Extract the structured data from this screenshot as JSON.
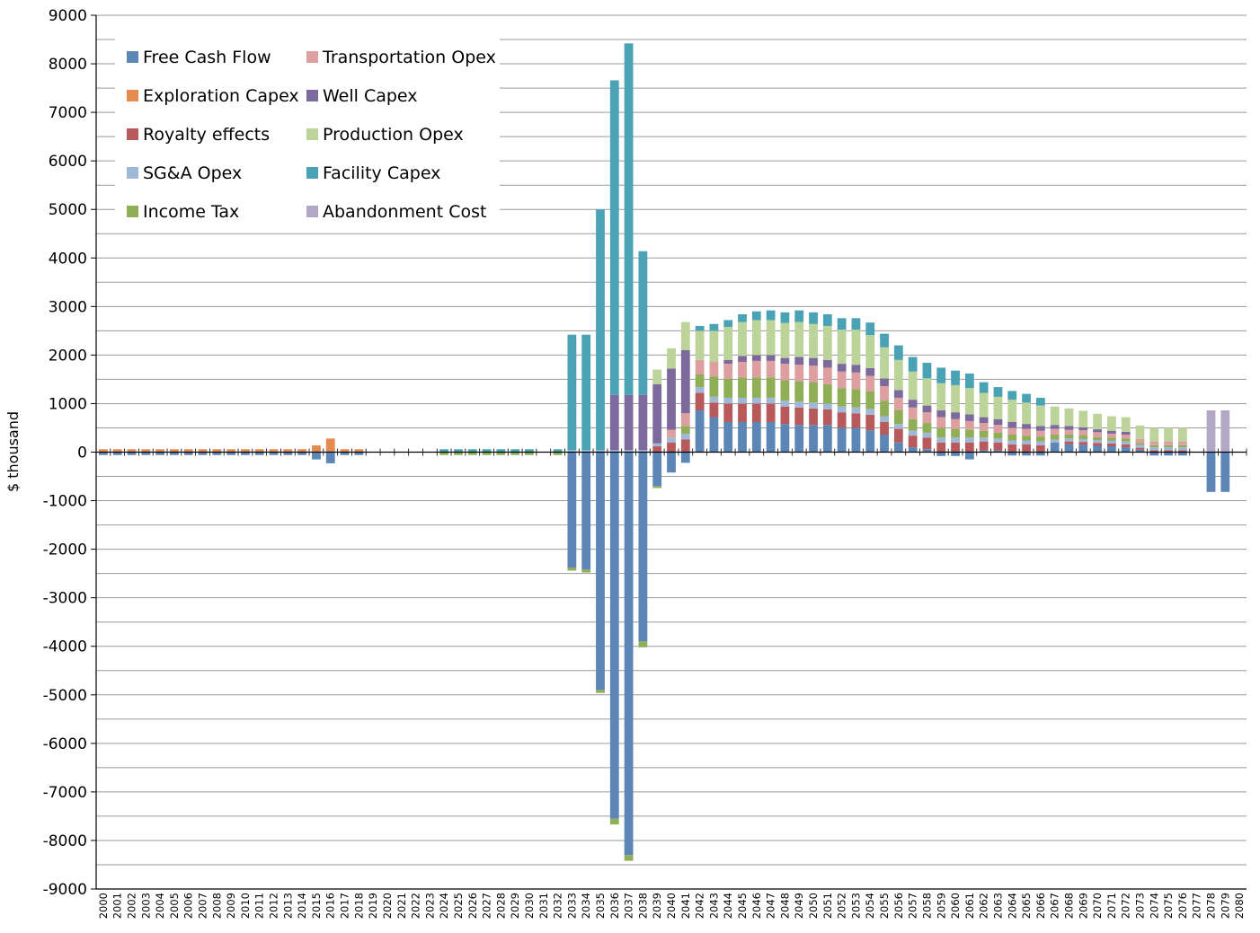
{
  "chart_data": {
    "type": "bar",
    "stacked": true,
    "title": "",
    "xlabel": "",
    "ylabel": "$ thousand",
    "ylim": [
      -9000,
      9000
    ],
    "yticks": [
      9000,
      8000,
      7000,
      6000,
      5000,
      4000,
      3000,
      2000,
      1000,
      0,
      -1000,
      -2000,
      -3000,
      -4000,
      -5000,
      -6000,
      -7000,
      -8000,
      -9000
    ],
    "ytick_labels": [
      "9000",
      "8000",
      "7000",
      "6000",
      "5000",
      "4000",
      "3000",
      "2000",
      "1000",
      "0",
      "-1000",
      "-2000",
      "-3000",
      "-4000",
      "-5000",
      "-6000",
      "-7000",
      "-8000",
      "-9000"
    ],
    "grid": "horizontal",
    "legend_position": "top-left",
    "categories": [
      "2000",
      "2001",
      "2002",
      "2003",
      "2004",
      "2005",
      "2006",
      "2007",
      "2008",
      "2009",
      "2010",
      "2011",
      "2012",
      "2013",
      "2014",
      "2015",
      "2016",
      "2017",
      "2018",
      "2019",
      "2020",
      "2021",
      "2022",
      "2023",
      "2024",
      "2025",
      "2026",
      "2027",
      "2028",
      "2029",
      "2030",
      "2031",
      "2032",
      "2033",
      "2034",
      "2035",
      "2036",
      "2037",
      "2038",
      "2039",
      "2040",
      "2041",
      "2042",
      "2043",
      "2044",
      "2045",
      "2046",
      "2047",
      "2048",
      "2049",
      "2050",
      "2051",
      "2052",
      "2053",
      "2054",
      "2055",
      "2056",
      "2057",
      "2058",
      "2059",
      "2060",
      "2061",
      "2062",
      "2063",
      "2064",
      "2065",
      "2066",
      "2067",
      "2068",
      "2069",
      "2070",
      "2071",
      "2072",
      "2073",
      "2074",
      "2075",
      "2076",
      "2077",
      "2078",
      "2079",
      "2080"
    ],
    "series": [
      {
        "name": "Free Cash Flow",
        "color": "#5b86b6",
        "values": [
          -60,
          -60,
          -60,
          -60,
          -60,
          -60,
          -60,
          -60,
          -60,
          -60,
          -60,
          -60,
          -60,
          -60,
          -60,
          -150,
          -230,
          -60,
          -60,
          0,
          0,
          0,
          0,
          0,
          0,
          0,
          0,
          0,
          0,
          0,
          0,
          0,
          0,
          -2380,
          -2420,
          -4900,
          -7550,
          -8300,
          -3900,
          -700,
          -420,
          -220,
          860,
          720,
          620,
          620,
          620,
          620,
          580,
          560,
          560,
          560,
          500,
          500,
          450,
          360,
          200,
          100,
          60,
          -80,
          -80,
          -150,
          40,
          40,
          -70,
          -70,
          -70,
          200,
          160,
          150,
          130,
          120,
          100,
          50,
          -70,
          -70,
          -70,
          0,
          -820,
          -820,
          0
        ],
        "pos_values": [
          0,
          0,
          0,
          0,
          0,
          0,
          0,
          0,
          0,
          0,
          0,
          0,
          0,
          0,
          0,
          0,
          0,
          0,
          0,
          0,
          0,
          0,
          0,
          0,
          0,
          0,
          0,
          0,
          0,
          0,
          0,
          0,
          0,
          0,
          0,
          0,
          0,
          0,
          0,
          0,
          0,
          0,
          860,
          720,
          620,
          620,
          620,
          620,
          580,
          560,
          560,
          560,
          500,
          500,
          450,
          360,
          200,
          100,
          60,
          0,
          0,
          0,
          40,
          40,
          0,
          0,
          0,
          200,
          160,
          150,
          130,
          120,
          100,
          50,
          0,
          0,
          0,
          0,
          0,
          0,
          0
        ]
      },
      {
        "name": "Exploration Capex",
        "color": "#e58b4f",
        "values": [
          60,
          60,
          60,
          60,
          60,
          60,
          60,
          60,
          60,
          60,
          60,
          60,
          60,
          60,
          60,
          140,
          280,
          60,
          60,
          0,
          0,
          0,
          0,
          0,
          0,
          0,
          0,
          0,
          0,
          0,
          0,
          0,
          0,
          0,
          0,
          0,
          0,
          0,
          0,
          0,
          0,
          0,
          0,
          0,
          0,
          0,
          0,
          0,
          0,
          0,
          0,
          0,
          0,
          0,
          0,
          0,
          0,
          0,
          0,
          0,
          0,
          0,
          0,
          0,
          0,
          0,
          0,
          0,
          0,
          0,
          0,
          0,
          0,
          0,
          0,
          0,
          0,
          0,
          0,
          0,
          0
        ]
      },
      {
        "name": "Royalty effects",
        "color": "#b8595b",
        "values": [
          0,
          0,
          0,
          0,
          0,
          0,
          0,
          0,
          0,
          0,
          0,
          0,
          0,
          0,
          0,
          0,
          0,
          0,
          0,
          0,
          0,
          0,
          0,
          0,
          0,
          0,
          0,
          0,
          0,
          0,
          0,
          0,
          0,
          0,
          0,
          0,
          0,
          0,
          0,
          120,
          200,
          260,
          360,
          300,
          380,
          380,
          380,
          380,
          360,
          360,
          340,
          320,
          320,
          300,
          320,
          260,
          280,
          240,
          240,
          200,
          200,
          200,
          180,
          160,
          160,
          160,
          140,
          0,
          60,
          60,
          60,
          60,
          60,
          40,
          40,
          40,
          40,
          0,
          0,
          0,
          0
        ]
      },
      {
        "name": "SG&A Opex",
        "color": "#9fb8d8",
        "values": [
          0,
          0,
          0,
          0,
          0,
          0,
          0,
          0,
          0,
          0,
          0,
          0,
          0,
          0,
          0,
          0,
          0,
          0,
          0,
          0,
          0,
          0,
          0,
          0,
          0,
          0,
          0,
          0,
          0,
          0,
          0,
          0,
          0,
          40,
          40,
          40,
          40,
          40,
          40,
          60,
          100,
          120,
          120,
          120,
          120,
          120,
          120,
          120,
          120,
          120,
          120,
          120,
          120,
          120,
          120,
          120,
          100,
          100,
          100,
          100,
          100,
          100,
          80,
          80,
          80,
          80,
          80,
          60,
          60,
          60,
          60,
          60,
          60,
          60,
          60,
          60,
          60,
          0,
          0,
          0,
          0
        ]
      },
      {
        "name": "Income Tax",
        "color": "#8fae56",
        "values": [
          0,
          0,
          0,
          0,
          0,
          0,
          0,
          0,
          0,
          0,
          0,
          0,
          0,
          0,
          0,
          0,
          0,
          0,
          0,
          0,
          0,
          0,
          0,
          0,
          -60,
          -60,
          -60,
          -60,
          -60,
          -60,
          -60,
          0,
          -60,
          -60,
          -60,
          -60,
          -120,
          -120,
          -120,
          -40,
          0,
          160,
          260,
          420,
          400,
          420,
          420,
          420,
          420,
          420,
          420,
          400,
          380,
          380,
          360,
          320,
          280,
          240,
          200,
          200,
          180,
          160,
          140,
          120,
          120,
          100,
          100,
          100,
          80,
          80,
          60,
          60,
          60,
          40,
          40,
          40,
          40,
          0,
          0,
          0,
          0
        ]
      },
      {
        "name": "Transportation Opex",
        "color": "#de9fa0",
        "values": [
          0,
          0,
          0,
          0,
          0,
          0,
          0,
          0,
          0,
          0,
          0,
          0,
          0,
          0,
          0,
          0,
          0,
          0,
          0,
          0,
          0,
          0,
          0,
          0,
          0,
          0,
          0,
          0,
          0,
          0,
          0,
          0,
          0,
          0,
          0,
          0,
          0,
          0,
          0,
          0,
          160,
          260,
          300,
          300,
          300,
          320,
          340,
          340,
          340,
          340,
          340,
          340,
          340,
          340,
          320,
          300,
          260,
          240,
          220,
          220,
          200,
          180,
          160,
          160,
          140,
          140,
          120,
          120,
          100,
          100,
          100,
          80,
          80,
          80,
          80,
          80,
          80,
          0,
          0,
          0,
          0
        ]
      },
      {
        "name": "Well Capex",
        "color": "#7d6a9d",
        "values": [
          0,
          0,
          0,
          0,
          0,
          0,
          0,
          0,
          0,
          0,
          0,
          0,
          0,
          0,
          0,
          0,
          0,
          0,
          0,
          0,
          0,
          0,
          0,
          0,
          0,
          0,
          0,
          0,
          0,
          0,
          0,
          0,
          0,
          0,
          0,
          0,
          1140,
          1140,
          1140,
          1220,
          1260,
          1300,
          0,
          0,
          80,
          120,
          120,
          120,
          120,
          160,
          160,
          160,
          160,
          160,
          160,
          160,
          160,
          160,
          140,
          140,
          140,
          140,
          120,
          120,
          120,
          100,
          100,
          80,
          80,
          60,
          60,
          60,
          60,
          0,
          0,
          0,
          0,
          0,
          0,
          0,
          0
        ]
      },
      {
        "name": "Production Opex",
        "color": "#bcd49a",
        "values": [
          0,
          0,
          0,
          0,
          0,
          0,
          0,
          0,
          0,
          0,
          0,
          0,
          0,
          0,
          0,
          0,
          0,
          0,
          0,
          0,
          0,
          0,
          0,
          0,
          0,
          0,
          0,
          0,
          0,
          0,
          0,
          0,
          0,
          0,
          0,
          0,
          0,
          0,
          0,
          300,
          420,
          580,
          600,
          640,
          680,
          700,
          720,
          720,
          720,
          720,
          700,
          700,
          700,
          720,
          680,
          640,
          620,
          580,
          560,
          560,
          560,
          540,
          500,
          460,
          460,
          440,
          420,
          380,
          360,
          340,
          320,
          300,
          300,
          280,
          280,
          280,
          280,
          0,
          0,
          0,
          0
        ]
      },
      {
        "name": "Facility Capex",
        "color": "#4aa3b5",
        "values": [
          0,
          0,
          0,
          0,
          0,
          0,
          0,
          0,
          0,
          0,
          0,
          0,
          0,
          0,
          0,
          0,
          0,
          0,
          0,
          0,
          0,
          0,
          0,
          0,
          60,
          60,
          60,
          60,
          60,
          60,
          60,
          0,
          60,
          2380,
          2380,
          4960,
          6480,
          7240,
          2960,
          0,
          0,
          0,
          100,
          140,
          140,
          160,
          180,
          200,
          220,
          240,
          240,
          240,
          240,
          240,
          260,
          280,
          300,
          300,
          320,
          320,
          300,
          300,
          220,
          200,
          180,
          180,
          160,
          0,
          0,
          0,
          0,
          0,
          0,
          0,
          0,
          0,
          0,
          0,
          0,
          0,
          0
        ]
      },
      {
        "name": "Abandonment Cost",
        "color": "#b2a8c6",
        "values": [
          0,
          0,
          0,
          0,
          0,
          0,
          0,
          0,
          0,
          0,
          0,
          0,
          0,
          0,
          0,
          0,
          0,
          0,
          0,
          0,
          0,
          0,
          0,
          0,
          0,
          0,
          0,
          0,
          0,
          0,
          0,
          0,
          0,
          0,
          0,
          0,
          0,
          0,
          0,
          0,
          0,
          0,
          0,
          0,
          0,
          0,
          0,
          0,
          0,
          0,
          0,
          0,
          0,
          0,
          0,
          0,
          0,
          0,
          0,
          0,
          0,
          0,
          0,
          0,
          0,
          0,
          0,
          0,
          0,
          0,
          0,
          0,
          0,
          0,
          0,
          0,
          0,
          0,
          860,
          860,
          0
        ]
      }
    ],
    "legend": [
      {
        "label": "Free Cash Flow",
        "color": "#5b86b6"
      },
      {
        "label": "Transportation Opex",
        "color": "#de9fa0"
      },
      {
        "label": "Exploration Capex",
        "color": "#e58b4f"
      },
      {
        "label": "Well Capex",
        "color": "#7d6a9d"
      },
      {
        "label": "Royalty effects",
        "color": "#b8595b"
      },
      {
        "label": "Production Opex",
        "color": "#bcd49a"
      },
      {
        "label": "SG&A Opex",
        "color": "#9fb8d8"
      },
      {
        "label": "Facility Capex",
        "color": "#4aa3b5"
      },
      {
        "label": "Income Tax",
        "color": "#8fae56"
      },
      {
        "label": "Abandonment Cost",
        "color": "#b2a8c6"
      }
    ]
  }
}
